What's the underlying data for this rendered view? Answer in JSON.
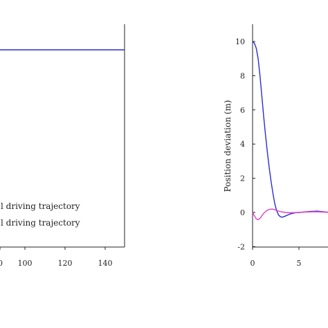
{
  "chart_data": [
    {
      "type": "line",
      "xlim": [
        0,
        150
      ],
      "x_ticks": [
        100,
        120,
        140
      ],
      "series": [
        {
          "name": "l driving trajectory",
          "color": "#2b2bd6",
          "x": [
            0,
            150
          ],
          "y": [
            1,
            1
          ]
        },
        {
          "name": "l driving trajectory",
          "color": "#e040c8",
          "x": [],
          "y": []
        }
      ],
      "legend_labels": [
        "l driving trajectory",
        "l driving trajectory"
      ],
      "legend": "bottom-left",
      "grid": false
    },
    {
      "type": "line",
      "ylabel": "Position deviation (m)",
      "ylim": [
        -2,
        11
      ],
      "y_ticks": [
        -2,
        0,
        2,
        4,
        6,
        8,
        10
      ],
      "xlim": [
        0,
        10.5
      ],
      "x_ticks": [
        0,
        5
      ],
      "grid": false,
      "series": [
        {
          "color": "#2b2bd6",
          "x": [
            0,
            0.2,
            0.4,
            0.6,
            0.8,
            1.0,
            1.2,
            1.4,
            1.6,
            1.8,
            2.0,
            2.2,
            2.4,
            2.6,
            2.8,
            3.0,
            3.2,
            3.5,
            4.0,
            4.5,
            5.0,
            6.0,
            7.0,
            8.0,
            9.0,
            10.5
          ],
          "y": [
            10,
            9.9,
            9.6,
            9.0,
            8.0,
            6.8,
            5.6,
            4.5,
            3.5,
            2.6,
            1.8,
            1.1,
            0.5,
            0.1,
            -0.15,
            -0.25,
            -0.28,
            -0.22,
            -0.1,
            -0.03,
            0,
            0.05,
            0.08,
            0.02,
            0,
            0
          ]
        },
        {
          "color": "#e040c8",
          "x": [
            0,
            0.2,
            0.4,
            0.6,
            0.8,
            1.0,
            1.2,
            1.5,
            1.8,
            2.1,
            2.4,
            2.7,
            3.0,
            3.5,
            4.0,
            5.0,
            6.0,
            7.0,
            8.0,
            9.0,
            10.5
          ],
          "y": [
            0,
            -0.2,
            -0.38,
            -0.42,
            -0.35,
            -0.2,
            -0.05,
            0.1,
            0.18,
            0.2,
            0.16,
            0.1,
            0.05,
            0,
            -0.02,
            0,
            0.03,
            0.04,
            0.01,
            0,
            0
          ]
        }
      ]
    }
  ]
}
